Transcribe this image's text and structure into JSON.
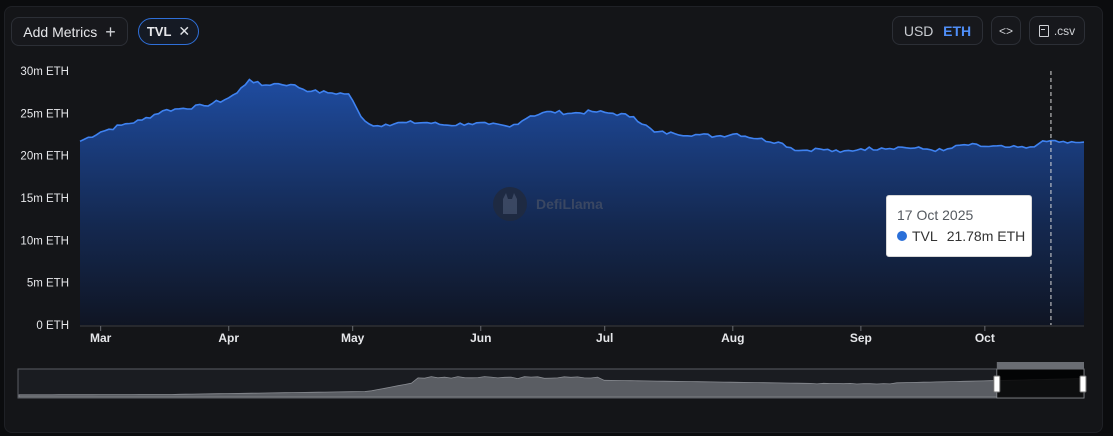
{
  "toolbar": {
    "add_metrics_label": "Add Metrics",
    "add_icon": "plus-icon",
    "chip_label": "TVL",
    "chip_close_icon": "close-icon",
    "currency_usd": "USD",
    "currency_eth": "ETH",
    "currency_selected": "ETH",
    "embed_label": "<>",
    "csv_label": ".csv",
    "csv_icon": "file-icon"
  },
  "watermark": {
    "text": "DefiLlama",
    "icon": "llama-logo-icon"
  },
  "colors": {
    "line": "#3f82f0",
    "fill_top": "#1f4fa8",
    "accent": "#4f8ef7",
    "tooltip_dot": "#2a6fd8"
  },
  "tooltip": {
    "date": "17 Oct 2025",
    "series": "TVL",
    "value": "21.78m ETH"
  },
  "chart_data": {
    "type": "area",
    "title": "",
    "xlabel": "",
    "ylabel": "",
    "y_unit": "m ETH",
    "ylim": [
      0,
      30
    ],
    "yticks": [
      0,
      5,
      10,
      15,
      20,
      25,
      30
    ],
    "ytick_labels": [
      "0 ETH",
      "5m ETH",
      "10m ETH",
      "15m ETH",
      "20m ETH",
      "25m ETH",
      "30m ETH"
    ],
    "xlim": [
      "2025-02-24",
      "2025-10-25"
    ],
    "xticks": [
      "2025-03-01",
      "2025-04-01",
      "2025-05-01",
      "2025-06-01",
      "2025-07-01",
      "2025-08-01",
      "2025-09-01",
      "2025-10-01"
    ],
    "xtick_labels": [
      "Mar",
      "Apr",
      "May",
      "Jun",
      "Jul",
      "Aug",
      "Sep",
      "Oct"
    ],
    "grid": false,
    "legend": "none",
    "hover_date": "2025-10-17",
    "series": [
      {
        "name": "TVL",
        "x": [
          "2025-02-24",
          "2025-03-01",
          "2025-03-06",
          "2025-03-11",
          "2025-03-16",
          "2025-03-21",
          "2025-03-26",
          "2025-03-31",
          "2025-04-03",
          "2025-04-06",
          "2025-04-09",
          "2025-04-12",
          "2025-04-16",
          "2025-04-21",
          "2025-04-26",
          "2025-04-30",
          "2025-05-03",
          "2025-05-06",
          "2025-05-09",
          "2025-05-14",
          "2025-05-19",
          "2025-05-24",
          "2025-05-29",
          "2025-06-03",
          "2025-06-08",
          "2025-06-13",
          "2025-06-18",
          "2025-06-23",
          "2025-06-28",
          "2025-07-03",
          "2025-07-08",
          "2025-07-13",
          "2025-07-18",
          "2025-07-23",
          "2025-07-28",
          "2025-08-02",
          "2025-08-07",
          "2025-08-12",
          "2025-08-17",
          "2025-08-22",
          "2025-08-27",
          "2025-09-01",
          "2025-09-06",
          "2025-09-11",
          "2025-09-16",
          "2025-09-21",
          "2025-09-26",
          "2025-10-01",
          "2025-10-06",
          "2025-10-11",
          "2025-10-14",
          "2025-10-17",
          "2025-10-21",
          "2025-10-25"
        ],
        "values": [
          21.7,
          22.8,
          23.6,
          24.2,
          25.3,
          25.6,
          25.9,
          26.6,
          27.4,
          29.0,
          28.3,
          28.5,
          28.4,
          27.6,
          27.4,
          27.3,
          24.6,
          23.5,
          23.7,
          23.9,
          23.9,
          23.6,
          23.8,
          23.7,
          23.4,
          24.7,
          25.2,
          25.0,
          25.2,
          25.0,
          24.6,
          22.8,
          22.6,
          22.5,
          22.3,
          22.6,
          22.0,
          21.6,
          20.6,
          20.8,
          20.4,
          20.8,
          20.9,
          21.0,
          20.8,
          20.6,
          21.3,
          21.1,
          21.0,
          20.9,
          21.4,
          21.78,
          21.5,
          21.6
        ]
      }
    ]
  }
}
